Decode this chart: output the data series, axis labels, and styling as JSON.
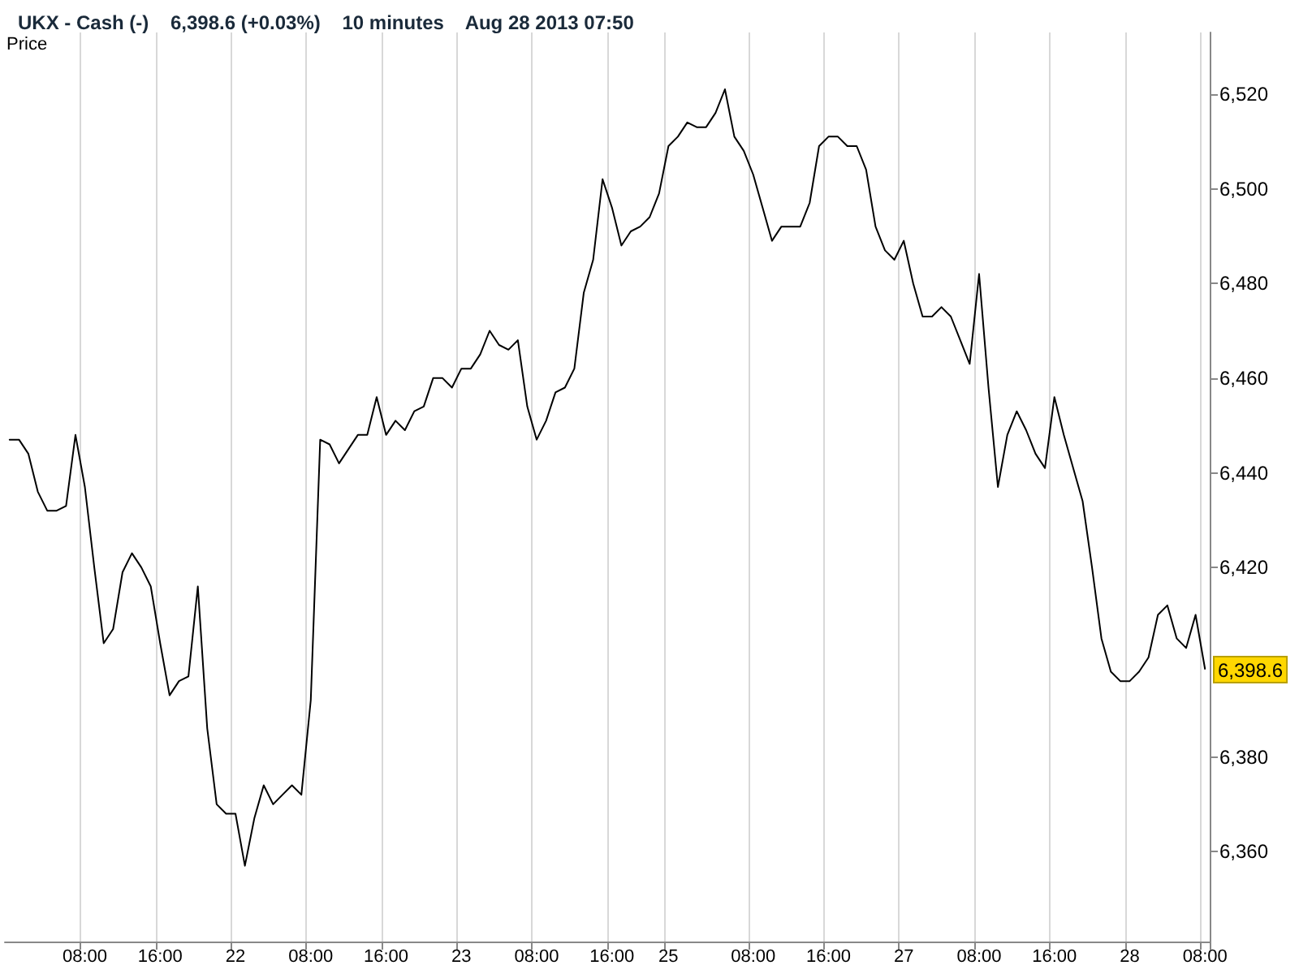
{
  "chart_data": {
    "type": "line",
    "title": "UKX - Cash (-)    6,398.6 (+0.03%)    10 minutes    Aug 28 2013 07:50",
    "ylabel": "Price",
    "categories": [
      null,
      null,
      null,
      null,
      null,
      null,
      null,
      null,
      "08:00",
      null,
      null,
      null,
      null,
      null,
      null,
      null,
      "16:00",
      null,
      null,
      null,
      null,
      null,
      null,
      null,
      "22",
      null,
      null,
      null,
      null,
      null,
      null,
      null,
      "08:00",
      null,
      null,
      null,
      null,
      null,
      null,
      null,
      "16:00",
      null,
      null,
      null,
      null,
      null,
      null,
      null,
      "23",
      null,
      null,
      null,
      null,
      null,
      null,
      null,
      "08:00",
      null,
      null,
      null,
      null,
      null,
      null,
      null,
      "16:00",
      null,
      null,
      null,
      null,
      null,
      "25",
      null,
      null,
      null,
      null,
      null,
      null,
      null,
      null,
      "08:00",
      null,
      null,
      null,
      null,
      null,
      null,
      null,
      "16:00",
      null,
      null,
      null,
      null,
      null,
      null,
      null,
      "27",
      null,
      null,
      null,
      null,
      null,
      null,
      null,
      "08:00",
      null,
      null,
      null,
      null,
      null,
      null,
      null,
      "16:00",
      null,
      null,
      null,
      null,
      null,
      null,
      null,
      "28",
      null,
      null,
      null,
      null,
      null,
      null,
      null,
      "08:00"
    ],
    "series": [
      {
        "color": "#000000",
        "values": [
          6447,
          6447,
          6444,
          6436,
          6432,
          6432,
          6433,
          6448,
          6437,
          6420,
          6404,
          6407,
          6419,
          6423,
          6420,
          6416,
          6404,
          6393,
          6396,
          6397,
          6416,
          6386,
          6370,
          6368,
          6368,
          6357,
          6367,
          6374,
          6370,
          6372,
          6374,
          6372,
          6392,
          6447,
          6446,
          6442,
          6445,
          6448,
          6448,
          6456,
          6448,
          6451,
          6449,
          6453,
          6454,
          6460,
          6460,
          6458,
          6462,
          6462,
          6465,
          6470,
          6467,
          6466,
          6468,
          6454,
          6447,
          6451,
          6457,
          6458,
          6462,
          6478,
          6485,
          6502,
          6496,
          6488,
          6491,
          6492,
          6494,
          6499,
          6509,
          6511,
          6514,
          6513,
          6513,
          6516,
          6521,
          6511,
          6508,
          6503,
          6496,
          6489,
          6492,
          6492,
          6492,
          6497,
          6509,
          6511,
          6511,
          6509,
          6509,
          6504,
          6492,
          6487,
          6485,
          6489,
          6480,
          6473,
          6473,
          6475,
          6473,
          6468,
          6463,
          6482,
          6458,
          6437,
          6448,
          6453,
          6449,
          6444,
          6441,
          6456,
          6448,
          6441,
          6434,
          6420,
          6405,
          6398,
          6396,
          6396,
          6398,
          6401,
          6410,
          6412,
          6405,
          6403,
          6410,
          6398.6
        ]
      }
    ],
    "ylim": [
      6341,
      6533
    ],
    "yticks": [
      {
        "value": 6360,
        "label": "6,360"
      },
      {
        "value": 6380,
        "label": "6,380"
      },
      {
        "value": 6420,
        "label": "6,420"
      },
      {
        "value": 6440,
        "label": "6,440"
      },
      {
        "value": 6460,
        "label": "6,460"
      },
      {
        "value": 6480,
        "label": "6,480"
      },
      {
        "value": 6500,
        "label": "6,500"
      },
      {
        "value": 6520,
        "label": "6,520"
      }
    ],
    "annotations": [
      "6,398.6"
    ],
    "grid": "x",
    "marker": "none",
    "line_style": "solid"
  }
}
